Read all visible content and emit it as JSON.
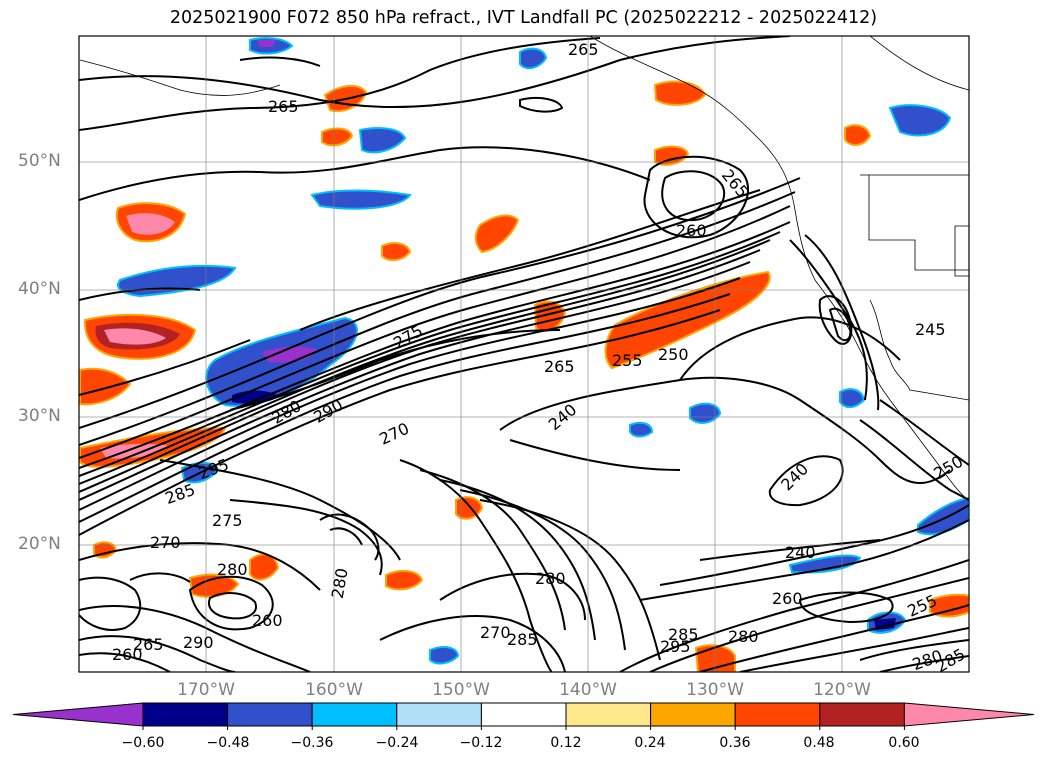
{
  "title": "2025021900 F072 850 hPa refract., IVT Landfall PC (2025022212 - 2025022412)",
  "axes": {
    "lat_labels": [
      "50°N",
      "40°N",
      "30°N",
      "20°N"
    ],
    "lon_labels": [
      "170°W",
      "160°W",
      "150°W",
      "140°W",
      "130°W",
      "120°W"
    ]
  },
  "contour_labels": [
    "265",
    "265",
    "265",
    "260",
    "275",
    "280",
    "290",
    "270",
    "295",
    "285",
    "275",
    "270",
    "280",
    "260",
    "280",
    "290",
    "260",
    "265",
    "280",
    "270",
    "285",
    "285",
    "295",
    "280",
    "265",
    "255",
    "250",
    "240",
    "240",
    "240",
    "260",
    "255",
    "245",
    "250",
    "280",
    "285"
  ],
  "colorbar": {
    "ticks": [
      "−0.60",
      "−0.48",
      "−0.36",
      "−0.24",
      "−0.12",
      "0.12",
      "0.24",
      "0.36",
      "0.48",
      "0.60"
    ],
    "colors": [
      "#9932cc",
      "#00008b",
      "#3050cc",
      "#00bfff",
      "#b0e0f8",
      "#ffffff",
      "#ffe88c",
      "#ffa500",
      "#ff4500",
      "#b22222",
      "#ff88aa"
    ]
  }
}
